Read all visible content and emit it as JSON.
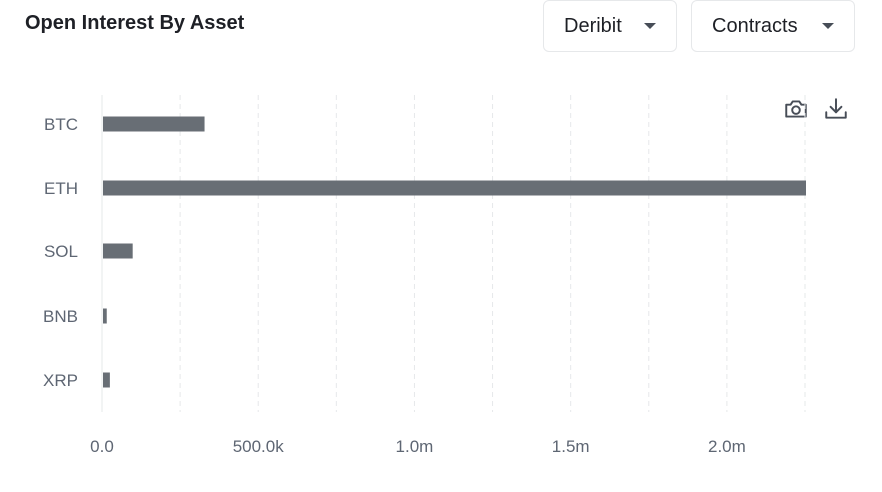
{
  "header": {
    "title": "Open Interest By Asset",
    "exchange_select": "Deribit",
    "unit_select": "Contracts"
  },
  "toolbar": {
    "camera_icon": "camera-icon",
    "download_icon": "download-icon"
  },
  "colors": {
    "bar": "#686e75",
    "grid": "#e6e8ea",
    "axis": "#5e6673"
  },
  "chart_data": {
    "type": "bar",
    "orientation": "horizontal",
    "categories": [
      "BTC",
      "ETH",
      "SOL",
      "BNB",
      "XRP"
    ],
    "values": [
      325000,
      2250000,
      95000,
      12000,
      22000
    ],
    "xlim": [
      0,
      2250000
    ],
    "xticks": [
      0,
      500000,
      1000000,
      1500000,
      2000000
    ],
    "xtick_labels": [
      "0.0",
      "500.0k",
      "1.0m",
      "1.5m",
      "2.0m"
    ],
    "grid": "vertical dashed",
    "title": "",
    "xlabel": "",
    "ylabel": ""
  }
}
